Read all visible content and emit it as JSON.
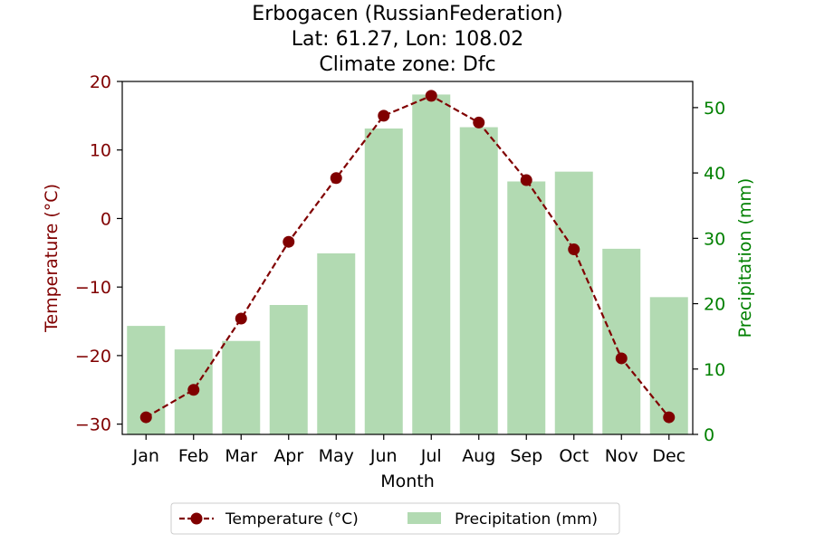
{
  "colors": {
    "temperature": "#800000",
    "precipitation": "#b2dab2",
    "precip_axis": "#008000",
    "axis": "#000000"
  },
  "chart_data": {
    "type": "bar",
    "title_lines": [
      "Erbogacen (RussianFederation)",
      "Lat: 61.27, Lon: 108.02",
      "Climate zone: Dfc"
    ],
    "xlabel": "Month",
    "ylabel_left": "Temperature (°C)",
    "ylabel_right": "Precipitation (mm)",
    "categories": [
      "Jan",
      "Feb",
      "Mar",
      "Apr",
      "May",
      "Jun",
      "Jul",
      "Aug",
      "Sep",
      "Oct",
      "Nov",
      "Dec"
    ],
    "y_left_lim": [
      -31.5,
      20
    ],
    "y_left_ticks": [
      -30,
      -20,
      -10,
      0,
      10,
      20
    ],
    "y_left_tick_labels": [
      "−30",
      "−20",
      "−10",
      "0",
      "10",
      "20"
    ],
    "y_right_lim": [
      0,
      54
    ],
    "y_right_ticks": [
      0,
      10,
      20,
      30,
      40,
      50
    ],
    "y_right_tick_labels": [
      "0",
      "10",
      "20",
      "30",
      "40",
      "50"
    ],
    "series": [
      {
        "name": "Temperature (°C)",
        "kind": "line",
        "axis": "left",
        "style": "dashed with circle markers",
        "values": [
          -29.0,
          -25.0,
          -14.6,
          -3.4,
          5.9,
          15.0,
          17.9,
          14.0,
          5.6,
          -4.5,
          -20.4,
          -29.0
        ]
      },
      {
        "name": "Precipitation (mm)",
        "kind": "bar",
        "axis": "right",
        "values": [
          16.6,
          13.0,
          14.3,
          19.8,
          27.7,
          46.8,
          52.0,
          47.0,
          38.7,
          40.2,
          28.4,
          21.0
        ]
      }
    ],
    "legend": {
      "placement": "bottom-center",
      "entries": [
        "Temperature (°C)",
        "Precipitation (mm)"
      ]
    },
    "grid": false
  }
}
